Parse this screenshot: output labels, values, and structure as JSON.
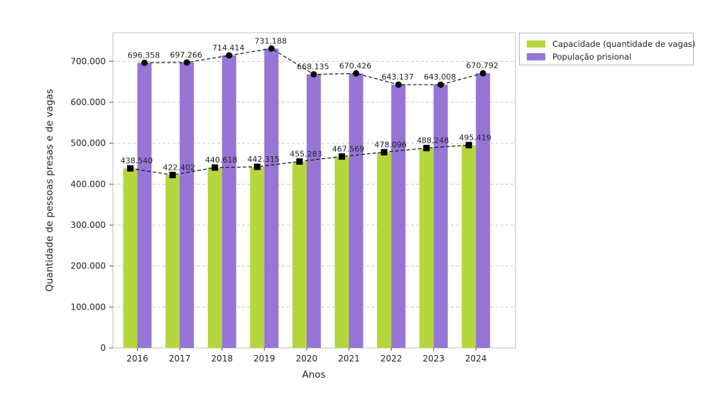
{
  "chart_data": {
    "type": "bar",
    "categories": [
      "2016",
      "2017",
      "2018",
      "2019",
      "2020",
      "2021",
      "2022",
      "2023",
      "2024"
    ],
    "series": [
      {
        "name": "Capacidade (quantidade de vagas)",
        "color": "#b5d63c",
        "values": [
          438540,
          422402,
          440618,
          442315,
          455283,
          467569,
          478096,
          488248,
          495419
        ],
        "labels": [
          "438.540",
          "422.402",
          "440.618",
          "442.315",
          "455.283",
          "467.569",
          "478.096",
          "488.248",
          "495.419"
        ],
        "trend_marker": "square"
      },
      {
        "name": "População prisional",
        "color": "#9575d5",
        "values": [
          696358,
          697266,
          714414,
          731188,
          668135,
          670426,
          643137,
          643008,
          670792
        ],
        "labels": [
          "696.358",
          "697.266",
          "714.414",
          "731.188",
          "668.135",
          "670.426",
          "643.137",
          "643.008",
          "670.792"
        ],
        "trend_marker": "circle"
      }
    ],
    "title": "",
    "xlabel": "Anos",
    "ylabel": "Quantidade de pessoas presas e de vagas",
    "ylim": [
      0,
      770000
    ],
    "yticks": [
      0,
      100000,
      200000,
      300000,
      400000,
      500000,
      600000,
      700000
    ],
    "ytick_labels": [
      "0",
      "100.000",
      "200.000",
      "300.000",
      "400.000",
      "500.000",
      "600.000",
      "700.000"
    ],
    "grid": "horizontal dashed",
    "trend_lines": "dashed black",
    "legend_placement": "outside top-right"
  }
}
